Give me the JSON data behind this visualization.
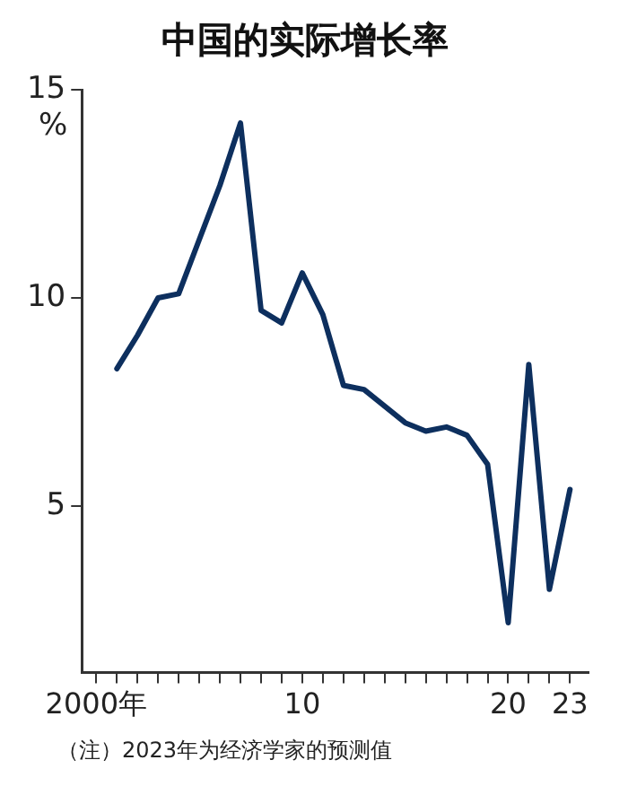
{
  "chart_data": {
    "type": "line",
    "title": "中国的实际增长率",
    "ylabel": "%",
    "annotations": [
      "（注）2023年为经济学家的预测值"
    ],
    "x": [
      2001,
      2002,
      2003,
      2004,
      2005,
      2006,
      2007,
      2008,
      2009,
      2010,
      2011,
      2012,
      2013,
      2014,
      2015,
      2016,
      2017,
      2018,
      2019,
      2020,
      2021,
      2022,
      2023
    ],
    "series": [
      {
        "color": "#0d2f5e",
        "values": [
          8.3,
          9.1,
          10.0,
          10.1,
          11.4,
          12.7,
          14.2,
          9.7,
          9.4,
          10.6,
          9.6,
          7.9,
          7.8,
          7.4,
          7.0,
          6.8,
          6.9,
          6.7,
          6.0,
          2.2,
          8.4,
          3.0,
          5.4
        ]
      }
    ],
    "xlim": [
      1999.3,
      2023.9
    ],
    "xticks": [
      {
        "value": 2000,
        "label": "2000年"
      },
      {
        "value": 2001,
        "label": null
      },
      {
        "value": 2002,
        "label": null
      },
      {
        "value": 2003,
        "label": null
      },
      {
        "value": 2004,
        "label": null
      },
      {
        "value": 2005,
        "label": null
      },
      {
        "value": 2006,
        "label": null
      },
      {
        "value": 2007,
        "label": null
      },
      {
        "value": 2008,
        "label": null
      },
      {
        "value": 2009,
        "label": null
      },
      {
        "value": 2010,
        "label": "10"
      },
      {
        "value": 2011,
        "label": null
      },
      {
        "value": 2012,
        "label": null
      },
      {
        "value": 2013,
        "label": null
      },
      {
        "value": 2014,
        "label": null
      },
      {
        "value": 2015,
        "label": null
      },
      {
        "value": 2016,
        "label": null
      },
      {
        "value": 2017,
        "label": null
      },
      {
        "value": 2018,
        "label": null
      },
      {
        "value": 2019,
        "label": null
      },
      {
        "value": 2020,
        "label": "20"
      },
      {
        "value": 2021,
        "label": null
      },
      {
        "value": 2022,
        "label": null
      },
      {
        "value": 2023,
        "label": "23"
      }
    ],
    "ylim": [
      1,
      15
    ],
    "yticks": [
      5,
      10,
      15
    ],
    "grid": false,
    "legend": false,
    "marker": "none",
    "line_style": "solid"
  }
}
